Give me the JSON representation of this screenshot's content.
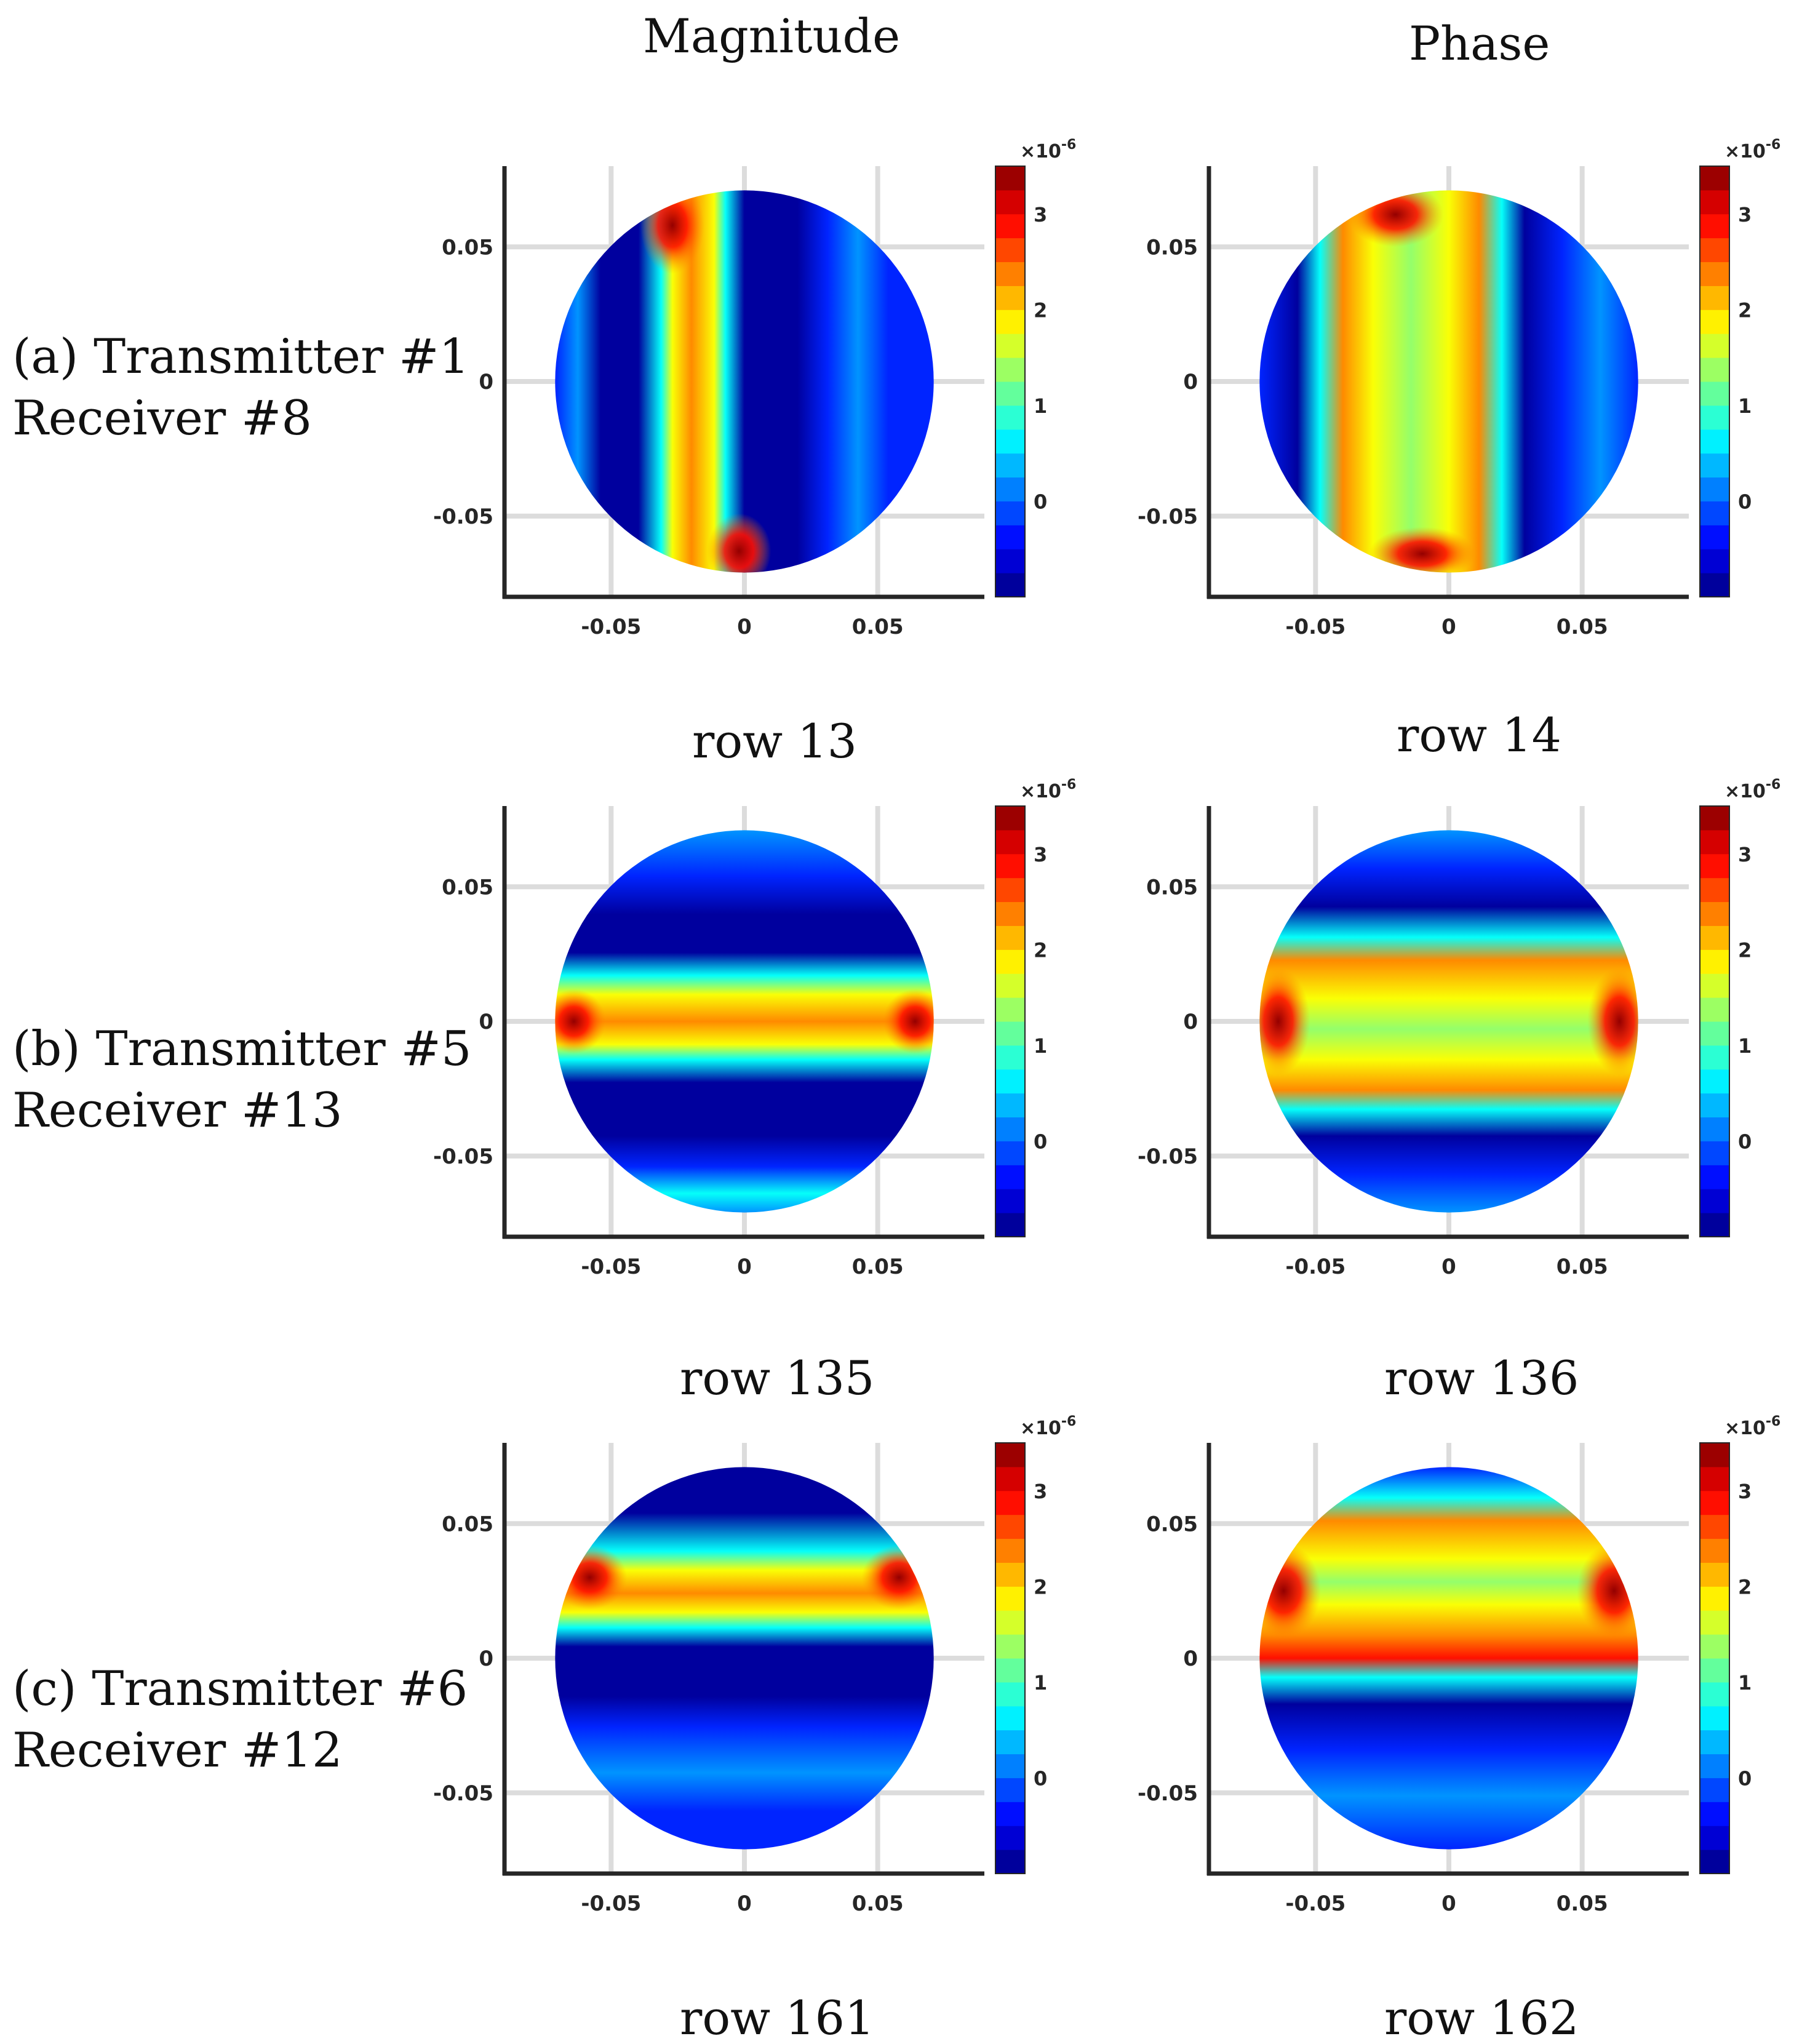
{
  "columns": {
    "magnitude_title": "Magnitude",
    "phase_title": "Phase"
  },
  "rows": [
    {
      "label_line1": "(a) Transmitter #1",
      "label_line2": "Receiver #8"
    },
    {
      "label_line1": "(b) Transmitter #5",
      "label_line2": "Receiver #13"
    },
    {
      "label_line1": "(c) Transmitter #6",
      "label_line2": "Receiver #12"
    }
  ],
  "colorbar": {
    "multiplier": "×10",
    "exponent": "-6",
    "ticks": [
      "0",
      "1",
      "2",
      "3"
    ],
    "range": [
      -1,
      3.5
    ]
  },
  "colors": {
    "axis": "#262626",
    "grid": "#dcdcdc"
  },
  "chart_data": [
    {
      "type": "heatmap",
      "id": "a-mag",
      "caption": "row 13",
      "pattern": "vertical-band",
      "peak": 3.4,
      "xlim": [
        -0.09,
        0.09
      ],
      "ylim": [
        -0.08,
        0.08
      ],
      "xticks": [
        "-0.05",
        "0",
        "0.05"
      ],
      "yticks": [
        "0.05",
        "0",
        "-0.05"
      ],
      "grid": true
    },
    {
      "type": "heatmap",
      "id": "a-phase",
      "caption": "row 14",
      "pattern": "vertical-broad",
      "peak": 3.4,
      "xlim": [
        -0.09,
        0.09
      ],
      "ylim": [
        -0.08,
        0.08
      ],
      "xticks": [
        "-0.05",
        "0",
        "0.05"
      ],
      "yticks": [
        "0.05",
        "0",
        "-0.05"
      ],
      "grid": true
    },
    {
      "type": "heatmap",
      "id": "b-mag",
      "caption": "row 135",
      "pattern": "horizontal-band",
      "peak": 3.4,
      "xlim": [
        -0.09,
        0.09
      ],
      "ylim": [
        -0.08,
        0.08
      ],
      "xticks": [
        "-0.05",
        "0",
        "0.05"
      ],
      "yticks": [
        "0.05",
        "0",
        "-0.05"
      ],
      "grid": true
    },
    {
      "type": "heatmap",
      "id": "b-phase",
      "caption": "row 136",
      "pattern": "horizontal-broad",
      "peak": 3.4,
      "xlim": [
        -0.09,
        0.09
      ],
      "ylim": [
        -0.08,
        0.08
      ],
      "xticks": [
        "-0.05",
        "0",
        "0.05"
      ],
      "yticks": [
        "0.05",
        "0",
        "-0.05"
      ],
      "grid": true
    },
    {
      "type": "heatmap",
      "id": "c-mag",
      "caption": "row 161",
      "pattern": "horizontal-band-upper",
      "peak": 3.4,
      "xlim": [
        -0.09,
        0.09
      ],
      "ylim": [
        -0.08,
        0.08
      ],
      "xticks": [
        "-0.05",
        "0",
        "0.05"
      ],
      "yticks": [
        "0.05",
        "0",
        "-0.05"
      ],
      "grid": true
    },
    {
      "type": "heatmap",
      "id": "c-phase",
      "caption": "row 162",
      "pattern": "horizontal-broad-upper",
      "peak": 3.4,
      "xlim": [
        -0.09,
        0.09
      ],
      "ylim": [
        -0.08,
        0.08
      ],
      "xticks": [
        "-0.05",
        "0",
        "0.05"
      ],
      "yticks": [
        "0.05",
        "0",
        "-0.05"
      ],
      "grid": true
    }
  ]
}
